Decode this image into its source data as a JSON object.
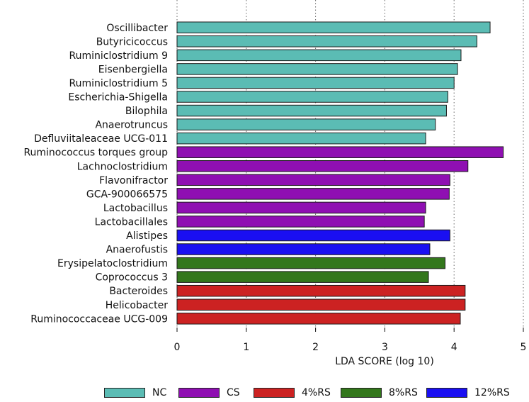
{
  "chart_data": {
    "type": "bar",
    "orientation": "horizontal",
    "title": "",
    "xlabel": "LDA SCORE (log 10)",
    "ylabel": "",
    "xlim": [
      0,
      5
    ],
    "xticks": [
      "0",
      "1",
      "2",
      "3",
      "4",
      "5"
    ],
    "grid": "vertical dotted",
    "legend_position": "bottom",
    "groups": [
      {
        "name": "NC",
        "color": "#5bbcb4"
      },
      {
        "name": "CS",
        "color": "#8f0fb2"
      },
      {
        "name": "4%RS",
        "color": "#cc2222"
      },
      {
        "name": "8%RS",
        "color": "#33771c"
      },
      {
        "name": "12%RS",
        "color": "#1a0ff2"
      }
    ],
    "bars": [
      {
        "label": "Oscillibacter",
        "value": 4.52,
        "group": "NC"
      },
      {
        "label": "Butyricicoccus",
        "value": 4.33,
        "group": "NC"
      },
      {
        "label": "Ruminiclostridium 9",
        "value": 4.1,
        "group": "NC"
      },
      {
        "label": "Eisenbergiella",
        "value": 4.05,
        "group": "NC"
      },
      {
        "label": "Ruminiclostridium 5",
        "value": 4.0,
        "group": "NC"
      },
      {
        "label": "Escherichia-Shigella",
        "value": 3.91,
        "group": "NC"
      },
      {
        "label": "Bilophila",
        "value": 3.89,
        "group": "NC"
      },
      {
        "label": "Anaerotruncus",
        "value": 3.73,
        "group": "NC"
      },
      {
        "label": "Defluviitaleaceae UCG-011",
        "value": 3.59,
        "group": "NC"
      },
      {
        "label": "Ruminococcus torques group",
        "value": 4.71,
        "group": "CS"
      },
      {
        "label": "Lachnoclostridium",
        "value": 4.2,
        "group": "CS"
      },
      {
        "label": "Flavonifractor",
        "value": 3.94,
        "group": "CS"
      },
      {
        "label": "GCA-900066575",
        "value": 3.93,
        "group": "CS"
      },
      {
        "label": "Lactobacillus",
        "value": 3.59,
        "group": "CS"
      },
      {
        "label": "Lactobacillales",
        "value": 3.57,
        "group": "CS"
      },
      {
        "label": "Alistipes",
        "value": 3.94,
        "group": "12%RS"
      },
      {
        "label": "Anaerofustis",
        "value": 3.65,
        "group": "12%RS"
      },
      {
        "label": "Erysipelatoclostridium",
        "value": 3.87,
        "group": "8%RS"
      },
      {
        "label": "Coprococcus 3",
        "value": 3.63,
        "group": "8%RS"
      },
      {
        "label": "Bacteroides",
        "value": 4.16,
        "group": "4%RS"
      },
      {
        "label": "Helicobacter",
        "value": 4.16,
        "group": "4%RS"
      },
      {
        "label": "Ruminococcaceae UCG-009",
        "value": 4.09,
        "group": "4%RS"
      }
    ]
  }
}
